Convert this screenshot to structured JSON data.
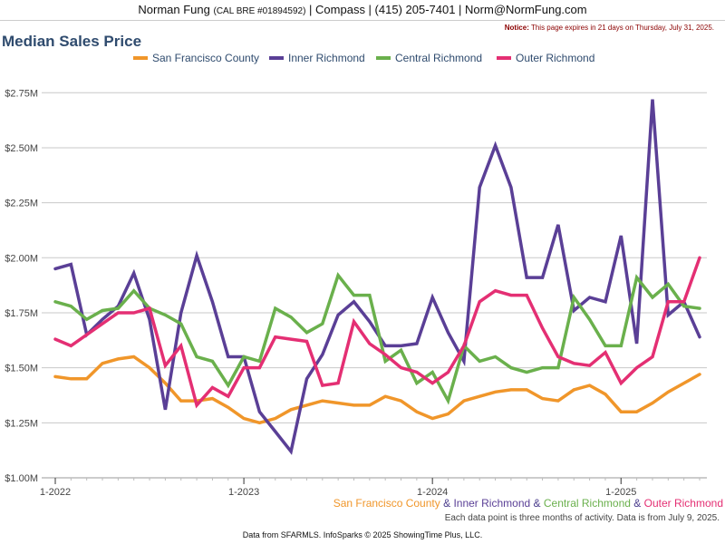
{
  "header": {
    "name": "Norman Fung",
    "license": "(CAL BRE #01894592)",
    "rest": "| Compass | (415) 205-7401 | Norm@NormFung.com"
  },
  "notice": {
    "label": "Notice:",
    "text": "This page expires in 21 days on Thursday, July 31, 2025."
  },
  "colors": {
    "sf": "#f0962a",
    "inner": "#5a3f96",
    "central": "#6ab04c",
    "outer": "#e42f73",
    "title": "#2f4b6e",
    "grid": "#c8c8c8"
  },
  "chart_data": {
    "type": "line",
    "title": "Median Sales Price",
    "x_tick_labels": [
      "1-2022",
      "1-2023",
      "1-2024",
      "1-2025"
    ],
    "y_tick_labels": [
      "$1.00M",
      "$1.25M",
      "$1.50M",
      "$1.75M",
      "$2.00M",
      "$2.25M",
      "$2.50M",
      "$2.75M"
    ],
    "ylim": [
      1.0,
      2.85
    ],
    "y_unit": "$M",
    "x": [
      "2022-01",
      "2022-02",
      "2022-03",
      "2022-04",
      "2022-05",
      "2022-06",
      "2022-07",
      "2022-08",
      "2022-09",
      "2022-10",
      "2022-11",
      "2022-12",
      "2023-01",
      "2023-02",
      "2023-03",
      "2023-04",
      "2023-05",
      "2023-06",
      "2023-07",
      "2023-08",
      "2023-09",
      "2023-10",
      "2023-11",
      "2023-12",
      "2024-01",
      "2024-02",
      "2024-03",
      "2024-04",
      "2024-05",
      "2024-06",
      "2024-07",
      "2024-08",
      "2024-09",
      "2024-10",
      "2024-11",
      "2024-12",
      "2025-01",
      "2025-02",
      "2025-03",
      "2025-04",
      "2025-05",
      "2025-06"
    ],
    "series": [
      {
        "name": "San Francisco County",
        "color_key": "sf",
        "values": [
          1.46,
          1.45,
          1.45,
          1.52,
          1.54,
          1.55,
          1.5,
          1.43,
          1.35,
          1.35,
          1.36,
          1.32,
          1.27,
          1.25,
          1.27,
          1.31,
          1.33,
          1.35,
          1.34,
          1.33,
          1.33,
          1.37,
          1.35,
          1.3,
          1.27,
          1.29,
          1.35,
          1.37,
          1.39,
          1.4,
          1.4,
          1.36,
          1.35,
          1.4,
          1.42,
          1.38,
          1.3,
          1.3,
          1.34,
          1.39,
          1.43,
          1.47
        ]
      },
      {
        "name": "Inner Richmond",
        "color_key": "inner",
        "values": [
          1.95,
          1.97,
          1.65,
          1.72,
          1.78,
          1.93,
          1.72,
          1.31,
          1.75,
          2.01,
          1.8,
          1.55,
          1.55,
          1.3,
          1.21,
          1.12,
          1.45,
          1.56,
          1.74,
          1.8,
          1.71,
          1.6,
          1.6,
          1.61,
          1.82,
          1.66,
          1.53,
          2.32,
          2.51,
          2.32,
          1.91,
          1.91,
          2.15,
          1.76,
          1.82,
          1.8,
          2.1,
          1.61,
          2.72,
          1.74,
          1.8,
          1.64
        ]
      },
      {
        "name": "Central Richmond",
        "color_key": "central",
        "values": [
          1.8,
          1.78,
          1.72,
          1.76,
          1.77,
          1.85,
          1.77,
          1.74,
          1.7,
          1.55,
          1.53,
          1.42,
          1.55,
          1.53,
          1.77,
          1.73,
          1.66,
          1.7,
          1.92,
          1.83,
          1.83,
          1.53,
          1.58,
          1.43,
          1.48,
          1.35,
          1.6,
          1.53,
          1.55,
          1.5,
          1.48,
          1.5,
          1.5,
          1.82,
          1.72,
          1.6,
          1.6,
          1.91,
          1.82,
          1.88,
          1.78,
          1.77
        ]
      },
      {
        "name": "Outer Richmond",
        "color_key": "outer",
        "values": [
          1.63,
          1.6,
          1.65,
          1.7,
          1.75,
          1.75,
          1.77,
          1.51,
          1.6,
          1.33,
          1.41,
          1.37,
          1.5,
          1.5,
          1.64,
          1.63,
          1.62,
          1.42,
          1.43,
          1.71,
          1.61,
          1.56,
          1.5,
          1.48,
          1.43,
          1.48,
          1.6,
          1.8,
          1.85,
          1.83,
          1.83,
          1.68,
          1.55,
          1.52,
          1.51,
          1.57,
          1.43,
          1.5,
          1.55,
          1.8,
          1.8,
          2.0
        ]
      }
    ]
  },
  "summary": {
    "sf": "San Francisco County",
    "inner": "Inner Richmond",
    "central": "Central Richmond",
    "outer": "Outer Richmond",
    "amp": "&"
  },
  "note": "Each data point is three months of activity. Data is from July 9, 2025.",
  "source": "Data from SFARMLS. InfoSparks © 2025 ShowingTime Plus, LLC."
}
